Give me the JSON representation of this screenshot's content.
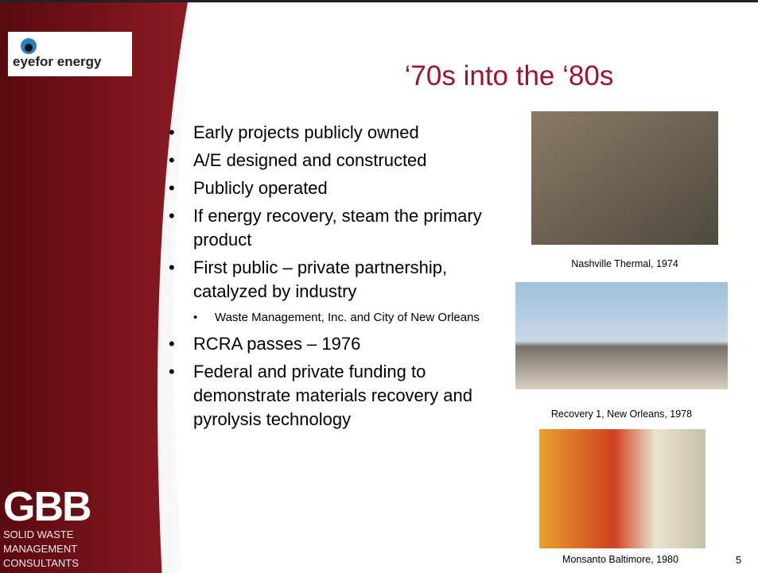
{
  "logo": {
    "text": "eyefor energy"
  },
  "title": "‘70s into the ‘80s",
  "bullets": [
    {
      "text": "Early projects publicly owned"
    },
    {
      "text": "A/E designed and constructed"
    },
    {
      "text": "Publicly operated"
    },
    {
      "text": "If energy recovery, steam the primary product"
    },
    {
      "text": "First public – private partnership, catalyzed by industry",
      "sub": [
        "Waste Management, Inc. and City of New Orleans"
      ]
    },
    {
      "text": "RCRA passes – 1976"
    },
    {
      "text": "Federal and private funding to demonstrate materials recovery and pyrolysis technology"
    }
  ],
  "photos": [
    {
      "caption": "Nashville Thermal, 1974"
    },
    {
      "caption": "Recovery 1, New Orleans, 1978"
    },
    {
      "caption": "Monsanto Baltimore, 1980"
    }
  ],
  "gbb": {
    "name": "GBB",
    "lines": [
      "SOLID WASTE",
      "MANAGEMENT",
      "CONSULTANTS"
    ]
  },
  "page_number": "5"
}
